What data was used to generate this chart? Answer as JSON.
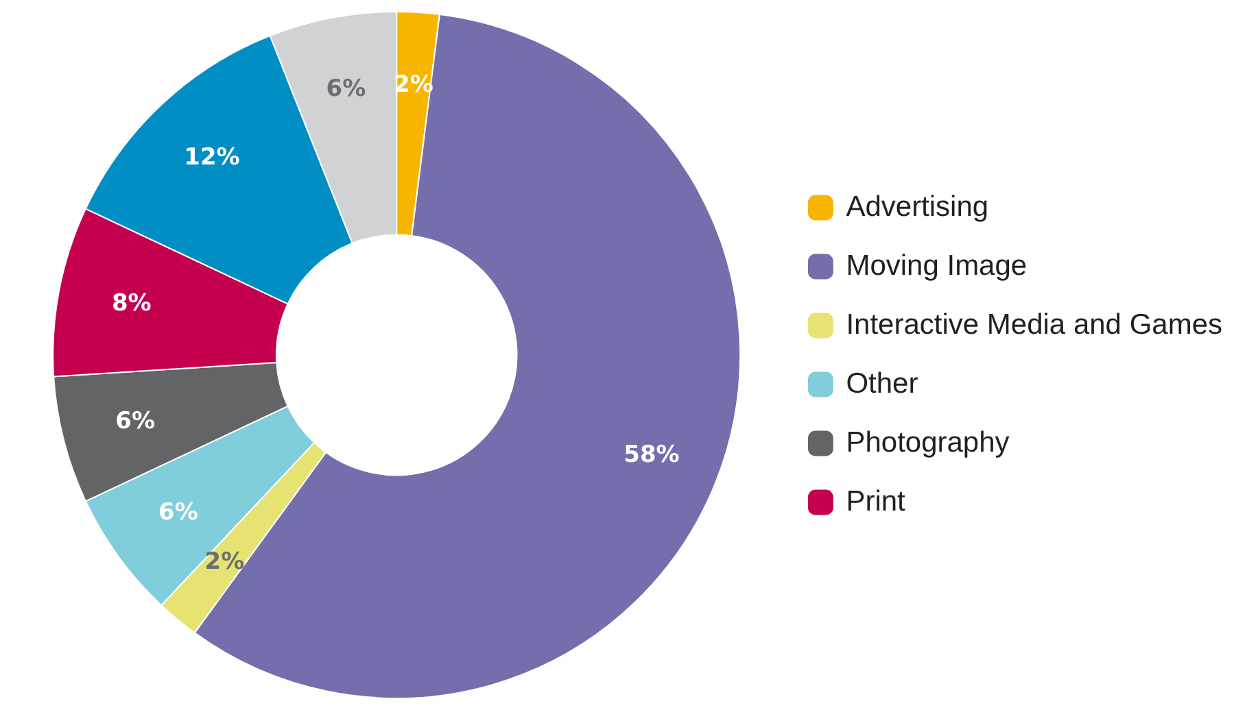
{
  "chart_data": {
    "type": "donut",
    "categories": [
      "Advertising",
      "Moving Image",
      "Interactive Media and Games",
      "Other",
      "Photography",
      "Print",
      null,
      null
    ],
    "values": [
      2,
      58,
      2,
      6,
      6,
      8,
      12,
      6
    ],
    "value_labels": [
      "2%",
      "58%",
      "2%",
      "6%",
      "6%",
      "8%",
      "12%",
      "6%"
    ],
    "colors": [
      "#f8b500",
      "#746eac",
      "#e6e372",
      "#80cddb",
      "#636466",
      "#c4004f",
      "#008ec4",
      "#d1d2d4"
    ],
    "legend": "right"
  }
}
